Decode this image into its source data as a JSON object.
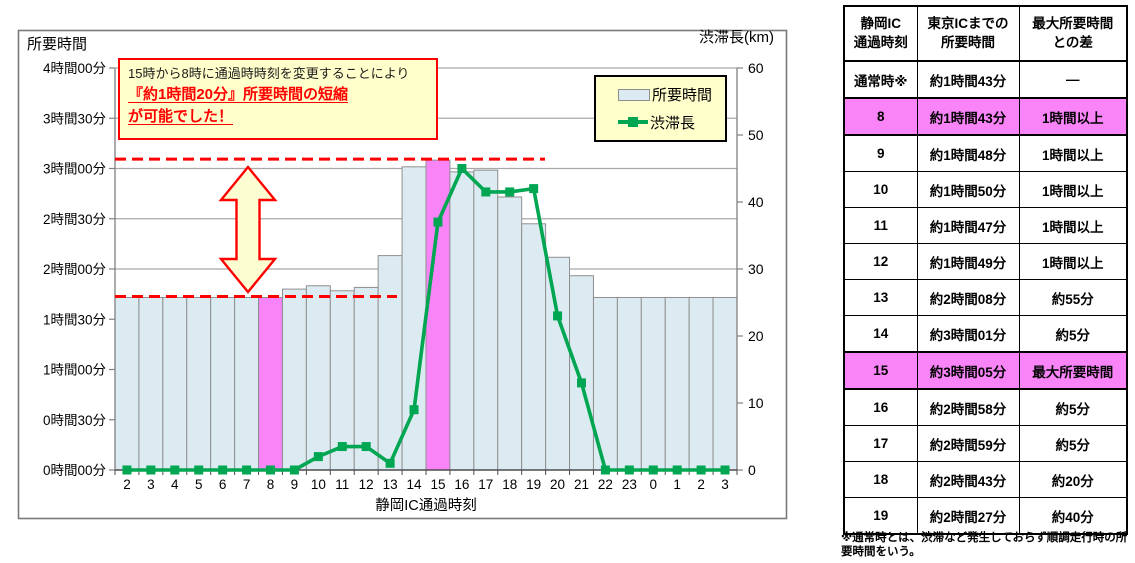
{
  "chart": {
    "left_axis_title": "所要時間",
    "right_axis_title": "渋滞長(km)",
    "x_axis_title": "静岡IC通過時刻"
  },
  "annotation": {
    "line1": "15時から8時に通過時時刻を変更することにより",
    "line2": "『約1時間20分』所要時間の短縮",
    "line3": "が可能でした！"
  },
  "legend": {
    "bar_label": "所要時間",
    "line_label": "渋滞長"
  },
  "chart_data": {
    "type": "bar+line",
    "title": "",
    "xlabel": "静岡IC通過時刻",
    "categories": [
      "2",
      "3",
      "4",
      "5",
      "6",
      "7",
      "8",
      "9",
      "10",
      "11",
      "12",
      "13",
      "14",
      "15",
      "16",
      "17",
      "18",
      "19",
      "20",
      "21",
      "22",
      "23",
      "0",
      "1",
      "2",
      "3"
    ],
    "series": [
      {
        "name": "所要時間",
        "type": "bar",
        "axis": "left",
        "unit": "minutes",
        "values": [
          103,
          103,
          103,
          103,
          103,
          103,
          103,
          108,
          110,
          107,
          109,
          128,
          181,
          185,
          178,
          179,
          163,
          147,
          127,
          116,
          103,
          103,
          103,
          103,
          103,
          103
        ]
      },
      {
        "name": "渋滞長",
        "type": "line",
        "axis": "right",
        "unit": "km",
        "values": [
          0,
          0,
          0,
          0,
          0,
          0,
          0,
          0,
          2,
          3.5,
          3.5,
          1,
          9,
          37,
          45,
          41.5,
          41.5,
          42,
          23,
          13,
          0,
          0,
          0,
          0,
          0,
          0
        ]
      }
    ],
    "highlighted_category_indices": [
      6,
      13
    ],
    "left_axis": {
      "tick_labels": [
        "4時間00分",
        "3時間30分",
        "3時間00分",
        "2時間30分",
        "2時間00分",
        "1時間30分",
        "1時間00分",
        "0時間30分",
        "0時間00分"
      ],
      "max_minutes": 240,
      "tick_step_minutes": 30
    },
    "right_axis": {
      "tick_labels": [
        "60",
        "50",
        "40",
        "30",
        "20",
        "10",
        "0"
      ],
      "max": 60,
      "tick_step": 10
    },
    "reference_lines": {
      "max_minutes": 185,
      "base_minutes": 103
    },
    "legend_position": "top-right-inside",
    "grid": "horizontal",
    "colors": {
      "bar_fill": "#dcebf2",
      "bar_border": "#8f8f8f",
      "highlight_fill": "#f884f8",
      "line": "#00a651",
      "reference": "#ff0000",
      "grid": "#a8a8a8",
      "callout_bg": "#ffffcc",
      "callout_border": "#ff0000"
    }
  },
  "table": {
    "headers": [
      {
        "line1": "静岡IC",
        "line2": "通過時刻"
      },
      {
        "line1": "東京ICまでの",
        "line2": "所要時間"
      },
      {
        "line1": "最大所要時間",
        "line2": "との差"
      }
    ],
    "rows": [
      {
        "time": "通常時※",
        "duration": "約1時間43分",
        "diff": "―",
        "highlight": false
      },
      {
        "time": "8",
        "duration": "約1時間43分",
        "diff": "1時間以上",
        "highlight": true
      },
      {
        "time": "9",
        "duration": "約1時間48分",
        "diff": "1時間以上",
        "highlight": false
      },
      {
        "time": "10",
        "duration": "約1時間50分",
        "diff": "1時間以上",
        "highlight": false
      },
      {
        "time": "11",
        "duration": "約1時間47分",
        "diff": "1時間以上",
        "highlight": false
      },
      {
        "time": "12",
        "duration": "約1時間49分",
        "diff": "1時間以上",
        "highlight": false
      },
      {
        "time": "13",
        "duration": "約2時間08分",
        "diff": "約55分",
        "highlight": false
      },
      {
        "time": "14",
        "duration": "約3時間01分",
        "diff": "約5分",
        "highlight": false
      },
      {
        "time": "15",
        "duration": "約3時間05分",
        "diff": "最大所要時間",
        "highlight": true
      },
      {
        "time": "16",
        "duration": "約2時間58分",
        "diff": "約5分",
        "highlight": false
      },
      {
        "time": "17",
        "duration": "約2時間59分",
        "diff": "約5分",
        "highlight": false
      },
      {
        "time": "18",
        "duration": "約2時間43分",
        "diff": "約20分",
        "highlight": false
      },
      {
        "time": "19",
        "duration": "約2時間27分",
        "diff": "約40分",
        "highlight": false
      }
    ],
    "footnote": "※通常時とは、渋滞など発生しておらず順調走行時の所要時間をいう。"
  }
}
